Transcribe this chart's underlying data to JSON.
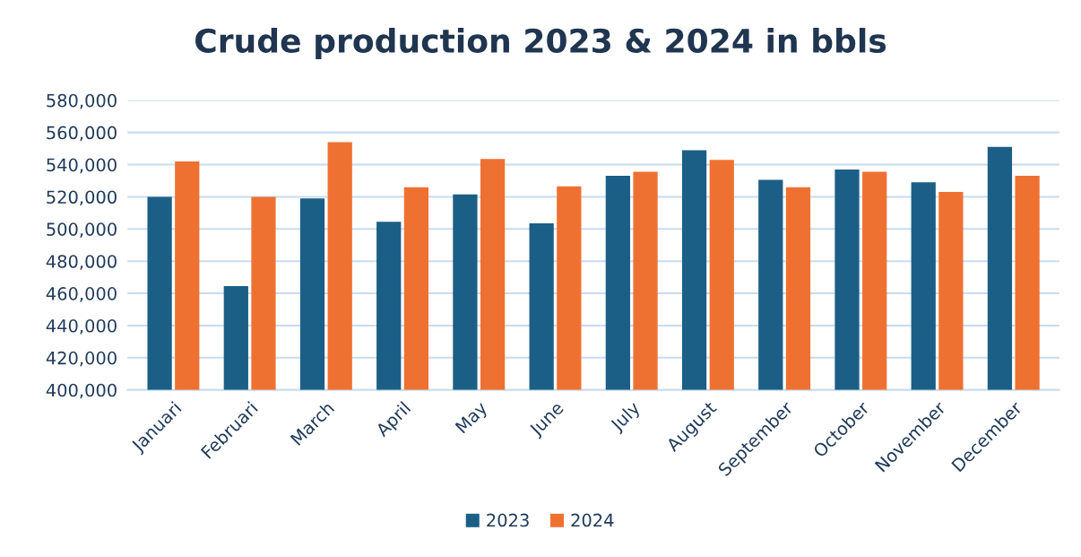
{
  "chart_data": {
    "type": "bar",
    "title": "Crude production 2023 & 2024 in bbls",
    "categories": [
      "Januari",
      "Februari",
      "March",
      "April",
      "May",
      "June",
      "July",
      "August",
      "September",
      "October",
      "November",
      "December"
    ],
    "series": [
      {
        "name": "2023",
        "color": "#1b5f86",
        "values": [
          520000,
          464500,
          519000,
          504500,
          521500,
          503500,
          533000,
          549000,
          530500,
          537000,
          529000,
          551000
        ]
      },
      {
        "name": "2024",
        "color": "#ef7132",
        "values": [
          542000,
          520000,
          554000,
          526000,
          543500,
          526500,
          535500,
          543000,
          526000,
          535500,
          523000,
          533000
        ]
      }
    ],
    "ylim": [
      400000,
      580000
    ],
    "yticks": [
      {
        "value": 400000,
        "label": "400,000"
      },
      {
        "value": 420000,
        "label": "420,000"
      },
      {
        "value": 440000,
        "label": "440,000"
      },
      {
        "value": 460000,
        "label": "460,000"
      },
      {
        "value": 480000,
        "label": "480,000"
      },
      {
        "value": 500000,
        "label": "500,000"
      },
      {
        "value": 520000,
        "label": "520,000"
      },
      {
        "value": 540000,
        "label": "540,000"
      },
      {
        "value": 560000,
        "label": "560,000"
      },
      {
        "value": 580000,
        "label": "580,000"
      }
    ],
    "grid": "y",
    "legend": "bottom"
  }
}
